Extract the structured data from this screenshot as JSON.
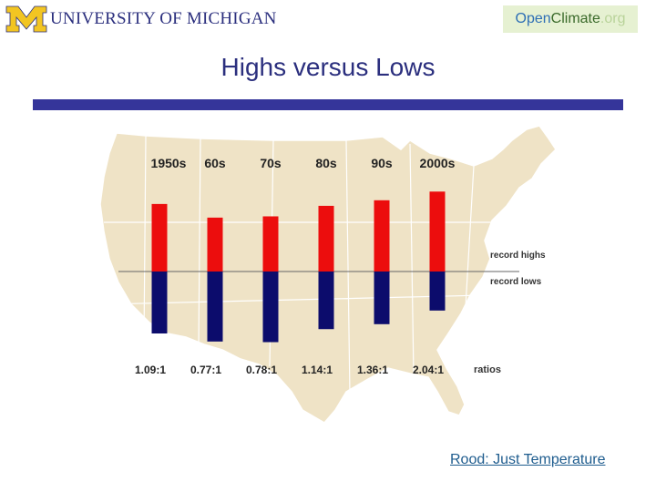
{
  "header": {
    "university_logo": "UNIVERSITY OF MICHIGAN",
    "partner_logo": {
      "open": "Open",
      "climate": "Climate",
      "org": ".org"
    }
  },
  "slide": {
    "title": "Highs versus Lows",
    "footer_link": "Rood: Just Temperature"
  },
  "colors": {
    "highs": "#ec0d0d",
    "lows": "#0c0c6c",
    "map_fill": "#efe3c6",
    "title_rule": "#35359a"
  },
  "chart_data": {
    "type": "bar",
    "title": "",
    "categories": [
      "1950s",
      "60s",
      "70s",
      "80s",
      "90s",
      "2000s"
    ],
    "series": [
      {
        "name": "record highs",
        "values": [
          1.09,
          0.87,
          0.89,
          1.06,
          1.15,
          1.29
        ]
      },
      {
        "name": "record lows",
        "values": [
          1.0,
          1.13,
          1.14,
          0.93,
          0.85,
          0.63
        ]
      }
    ],
    "ratios": [
      "1.09:1",
      "0.77:1",
      "0.78:1",
      "1.14:1",
      "1.36:1",
      "2.04:1"
    ],
    "ratio_label": "ratios",
    "legend": {
      "highs": "record highs",
      "lows": "record lows"
    },
    "legend_position": "right",
    "grid": false
  }
}
